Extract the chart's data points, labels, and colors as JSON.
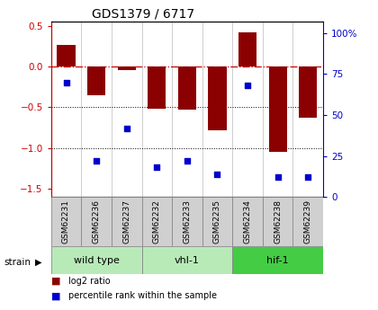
{
  "title": "GDS1379 / 6717",
  "samples": [
    "GSM62231",
    "GSM62236",
    "GSM62237",
    "GSM62232",
    "GSM62233",
    "GSM62235",
    "GSM62234",
    "GSM62238",
    "GSM62239"
  ],
  "log2_ratio": [
    0.27,
    -0.35,
    -0.04,
    -0.52,
    -0.53,
    -0.78,
    0.42,
    -1.05,
    -0.63
  ],
  "percentile": [
    70,
    22,
    42,
    18,
    22,
    14,
    68,
    12,
    12
  ],
  "group_configs": [
    {
      "indices": [
        0,
        1,
        2
      ],
      "label": "wild type",
      "color": "#b8eab8"
    },
    {
      "indices": [
        3,
        4,
        5
      ],
      "label": "vhl-1",
      "color": "#b8eab8"
    },
    {
      "indices": [
        6,
        7,
        8
      ],
      "label": "hif-1",
      "color": "#44cc44"
    }
  ],
  "ylim_left": [
    -1.6,
    0.55
  ],
  "ylim_right": [
    0,
    107
  ],
  "left_ticks": [
    0.5,
    0.0,
    -0.5,
    -1.0,
    -1.5
  ],
  "right_ticks": [
    0,
    25,
    50,
    75,
    100
  ],
  "bar_color": "#8b0000",
  "dot_color": "#0000cc",
  "bar_width": 0.6,
  "dotted_lines": [
    -0.5,
    -1.0
  ],
  "background_color": "#ffffff",
  "sample_box_color": "#d0d0d0",
  "legend_red_label": "log2 ratio",
  "legend_blue_label": "percentile rank within the sample",
  "strain_label": "strain"
}
